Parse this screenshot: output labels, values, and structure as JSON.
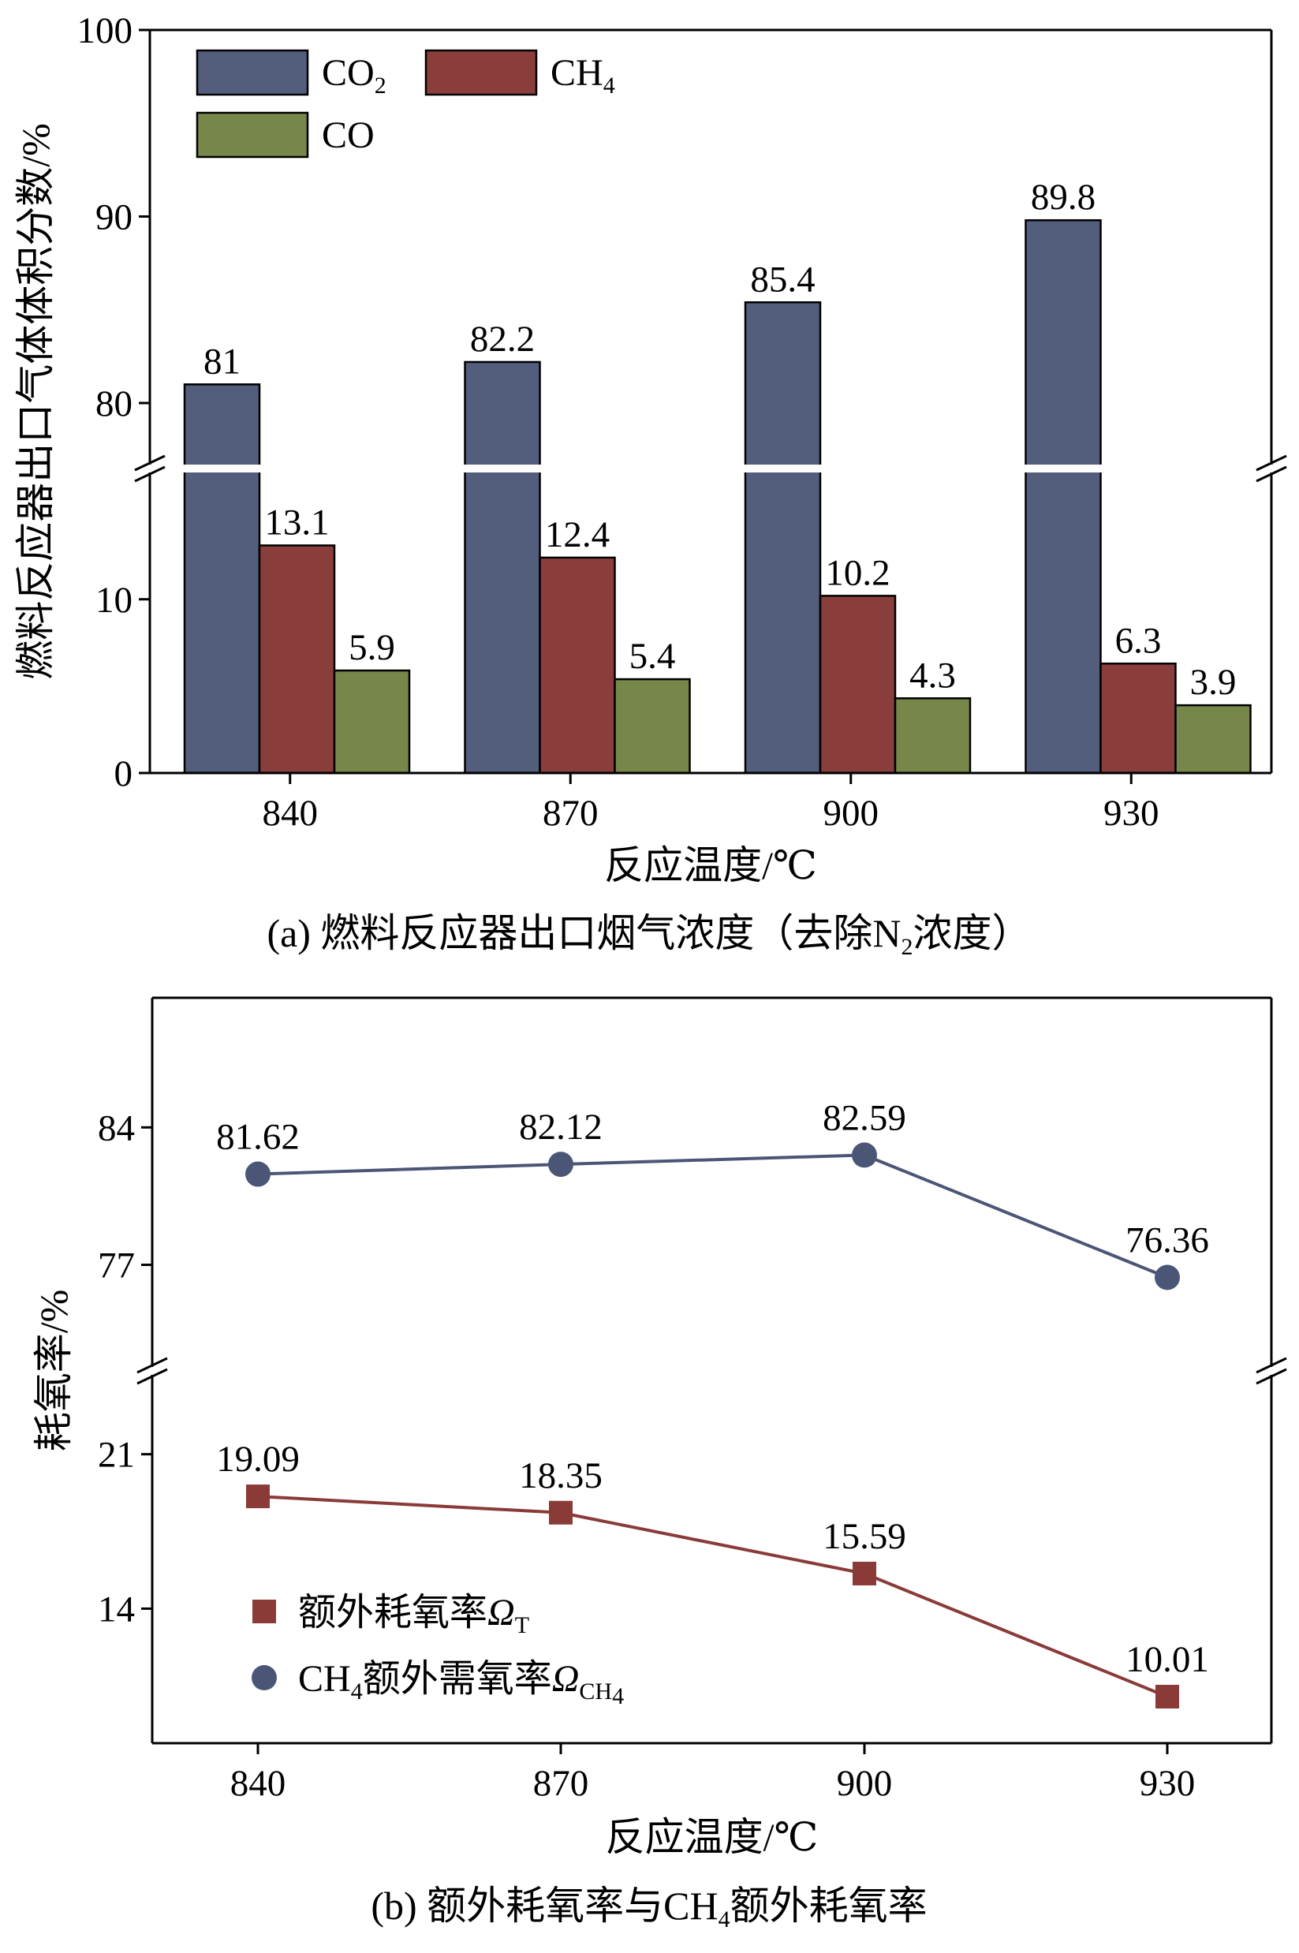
{
  "colors": {
    "co2": "#535e7d",
    "ch4": "#8a3e3c",
    "co": "#77874a",
    "omega_t": "#8a3b38",
    "omega_ch4": "#4b5677",
    "axis": "#000000"
  },
  "chart_data": [
    {
      "id": "a",
      "type": "bar",
      "title": "(a) 燃料反应器出口烟气浓度（去除N₂浓度）",
      "caption": {
        "prefix": "(a) 燃料反应器出口烟气浓度（去除N",
        "sub": "2",
        "suffix": "浓度）"
      },
      "xlabel": "反应温度/℃",
      "ylabel": "燃料反应器出口气体体积分数/%",
      "categories": [
        "840",
        "870",
        "900",
        "930"
      ],
      "series": [
        {
          "name": "CO2",
          "base": "CO",
          "sub": "2",
          "color_key": "co2",
          "values": [
            81,
            82.2,
            85.4,
            89.8
          ],
          "labels": [
            "81",
            "82.2",
            "85.4",
            "89.8"
          ]
        },
        {
          "name": "CH4",
          "base": "CH",
          "sub": "4",
          "color_key": "ch4",
          "values": [
            13.1,
            12.4,
            10.2,
            6.3
          ],
          "labels": [
            "13.1",
            "12.4",
            "10.2",
            "6.3"
          ]
        },
        {
          "name": "CO",
          "base": "CO",
          "sub": "",
          "color_key": "co",
          "values": [
            5.9,
            5.4,
            4.3,
            3.9
          ],
          "labels": [
            "5.9",
            "5.4",
            "4.3",
            "3.9"
          ]
        }
      ],
      "y_axis_break": {
        "lower_range": [
          0,
          17.3
        ],
        "upper_range": [
          76.7,
          100
        ]
      },
      "yticks": [
        {
          "value": 0,
          "label": "0"
        },
        {
          "value": 10,
          "label": "10"
        },
        {
          "value": 80,
          "label": "80"
        },
        {
          "value": 90,
          "label": "90"
        },
        {
          "value": 100,
          "label": "100"
        }
      ],
      "legend_position": "top-left"
    },
    {
      "id": "b",
      "type": "line",
      "title": "(b) 额外耗氧率与CH₄额外耗氧率",
      "caption": {
        "prefix": "(b) 额外耗氧率与CH",
        "sub": "4",
        "suffix": "额外耗氧率"
      },
      "xlabel": "反应温度/℃",
      "ylabel": "耗氧率/%",
      "x": [
        "840",
        "870",
        "900",
        "930"
      ],
      "series": [
        {
          "name": "CH4额外需氧率Ω_CH4",
          "legend_prefix": "CH",
          "legend_prefix_sub": "4",
          "legend_text": "额外需氧率",
          "symbol": "Ω",
          "symbol_sub": "CH",
          "symbol_sub2": "4",
          "marker": "circle",
          "color_key": "omega_ch4",
          "values": [
            81.62,
            82.12,
            82.59,
            76.36
          ],
          "labels": [
            "81.62",
            "82.12",
            "82.59",
            "76.36"
          ]
        },
        {
          "name": "额外耗氧率Ω_T",
          "legend_text": "额外耗氧率",
          "symbol": "Ω",
          "symbol_sub": "T",
          "marker": "square",
          "color_key": "omega_t",
          "values": [
            19.09,
            18.35,
            15.59,
            10.01
          ],
          "labels": [
            "19.09",
            "18.35",
            "15.59",
            "10.01"
          ]
        }
      ],
      "y_axis_break": {
        "lower_range": [
          7.9,
          24.6
        ],
        "upper_range": [
          71.8,
          90.6
        ]
      },
      "yticks": [
        {
          "value": 14,
          "label": "14"
        },
        {
          "value": 21,
          "label": "21"
        },
        {
          "value": 77,
          "label": "77"
        },
        {
          "value": 84,
          "label": "84"
        }
      ],
      "legend_position": "bottom-left"
    }
  ]
}
